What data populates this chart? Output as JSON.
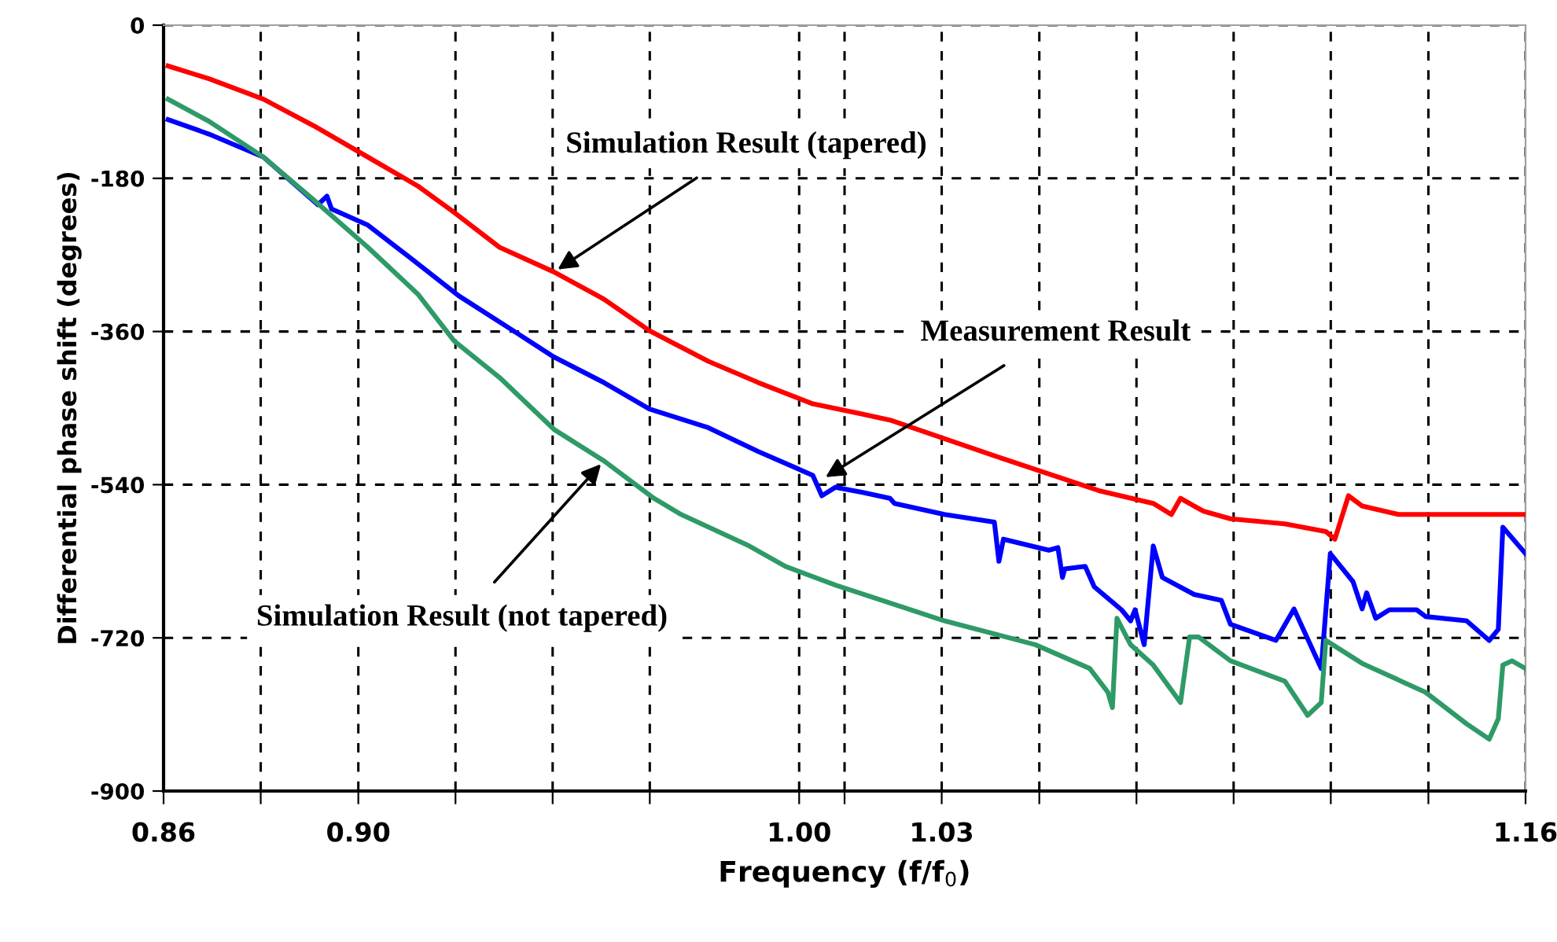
{
  "chart_data": {
    "type": "line",
    "xlabel": "Frequency (f/f$_{0}$)",
    "ylabel": "Differential phase shift (degrees)",
    "xlim": [
      0.86,
      1.16
    ],
    "xticks": [
      0.86,
      {
        "value": 0.8814,
        "label": null
      },
      {
        "value": 0.9029,
        "label": "0.90"
      },
      {
        "value": 0.9243,
        "label": null
      },
      {
        "value": 0.9457,
        "label": null
      },
      {
        "value": 0.9671,
        "label": null
      },
      {
        "value": 1.0,
        "label": "1.00"
      },
      {
        "value": 1.01,
        "label": null
      },
      {
        "value": 1.0314,
        "label": "1.03"
      },
      {
        "value": 1.0529,
        "label": null
      },
      {
        "value": 1.0743,
        "label": null
      },
      {
        "value": 1.0957,
        "label": null
      },
      {
        "value": 1.1171,
        "label": null
      },
      {
        "value": 1.1386,
        "label": null
      },
      1.16
    ],
    "ylim": [
      -900,
      0
    ],
    "yticks": [
      -900,
      -720,
      -540,
      -360,
      -180,
      0
    ],
    "grid": true,
    "line_style": "solid",
    "marker": "none",
    "series": [
      {
        "color": "#ff0000",
        "x": [
          0.861,
          0.87,
          0.882,
          0.893,
          0.905,
          0.916,
          0.924,
          0.934,
          0.946,
          0.957,
          0.967,
          0.98,
          0.991,
          1.003,
          1.013,
          1.02,
          1.043,
          1.066,
          1.078,
          1.082,
          1.084,
          1.089,
          1.095,
          1.107,
          1.116,
          1.118,
          1.121,
          1.124,
          1.132,
          1.16
        ],
        "values": [
          -48,
          -63,
          -87,
          -118,
          -155,
          -189,
          -220,
          -261,
          -290,
          -322,
          -359,
          -395,
          -420,
          -445,
          -456,
          -464,
          -506,
          -547,
          -562,
          -575,
          -556,
          -571,
          -580,
          -586,
          -595,
          -604,
          -553,
          -565,
          -575,
          -575
        ]
      },
      {
        "color": "#0000ff",
        "x": [
          0.861,
          0.87,
          0.882,
          0.894,
          0.896,
          0.897,
          0.905,
          0.914,
          0.925,
          0.937,
          0.946,
          0.957,
          0.967,
          0.98,
          0.991,
          1.003,
          1.005,
          1.008,
          1.014,
          1.02,
          1.021,
          1.032,
          1.043,
          1.044,
          1.045,
          1.055,
          1.057,
          1.058,
          1.0585,
          1.063,
          1.065,
          1.071,
          1.073,
          1.074,
          1.076,
          1.078,
          1.08,
          1.087,
          1.093,
          1.095,
          1.105,
          1.109,
          1.115,
          1.117,
          1.122,
          1.124,
          1.125,
          1.127,
          1.13,
          1.136,
          1.138,
          1.147,
          1.152,
          1.154,
          1.155,
          1.16
        ],
        "values": [
          -111,
          -128,
          -155,
          -211,
          -201,
          -216,
          -235,
          -272,
          -318,
          -359,
          -390,
          -420,
          -451,
          -473,
          -501,
          -529,
          -553,
          -543,
          -549,
          -556,
          -562,
          -575,
          -584,
          -630,
          -604,
          -617,
          -614,
          -649,
          -639,
          -636,
          -660,
          -687,
          -700,
          -687,
          -728,
          -612,
          -649,
          -669,
          -676,
          -704,
          -723,
          -686,
          -756,
          -621,
          -654,
          -686,
          -667,
          -697,
          -687,
          -687,
          -695,
          -700,
          -723,
          -710,
          -590,
          -621
        ]
      },
      {
        "color": "#2e9a68",
        "x": [
          0.861,
          0.87,
          0.882,
          0.893,
          0.905,
          0.916,
          0.924,
          0.934,
          0.946,
          0.957,
          0.968,
          0.974,
          0.989,
          0.997,
          1.008,
          1.032,
          1.052,
          1.064,
          1.068,
          1.069,
          1.07,
          1.073,
          1.078,
          1.084,
          1.086,
          1.088,
          1.095,
          1.107,
          1.112,
          1.115,
          1.116,
          1.124,
          1.138,
          1.147,
          1.152,
          1.154,
          1.155,
          1.157,
          1.16
        ],
        "values": [
          -87,
          -113,
          -155,
          -205,
          -261,
          -316,
          -371,
          -414,
          -475,
          -512,
          -556,
          -575,
          -612,
          -636,
          -658,
          -700,
          -728,
          -756,
          -784,
          -802,
          -697,
          -728,
          -752,
          -796,
          -719,
          -719,
          -747,
          -771,
          -811,
          -796,
          -723,
          -750,
          -784,
          -821,
          -839,
          -815,
          -752,
          -747,
          -756
        ]
      }
    ],
    "annotations": [
      {
        "text": "Simulation Result (tapered)",
        "x": 0.946,
        "y": -290
      },
      {
        "text": "Measurement Result",
        "x": 1.005,
        "y": -534
      },
      {
        "text": "Simulation Result (not tapered)",
        "x": 0.957,
        "y": -512
      }
    ]
  }
}
